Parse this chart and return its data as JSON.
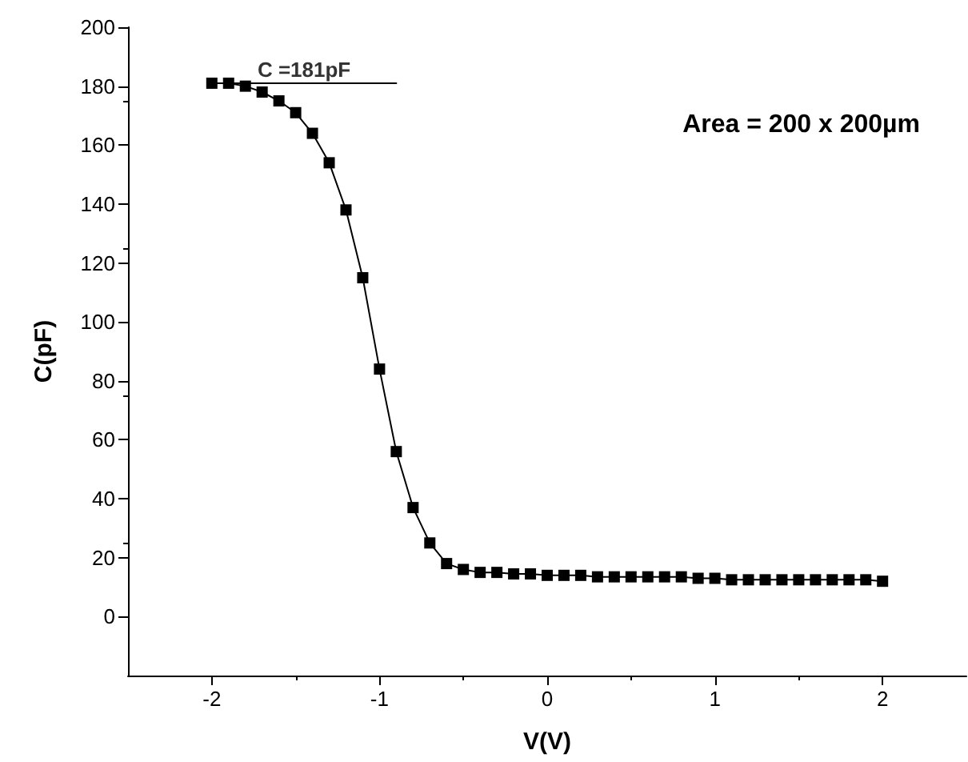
{
  "chart_data": {
    "type": "line",
    "xlabel": "V(V)",
    "ylabel": "C(pF)",
    "xlim": [
      -2.5,
      2.5
    ],
    "xticks": [
      -2,
      -1,
      0,
      1,
      2
    ],
    "ylim": [
      -20,
      200
    ],
    "yticks": [
      0,
      20,
      40,
      60,
      80,
      100,
      120,
      140,
      160,
      180,
      200
    ],
    "grid": false,
    "marker": "square",
    "line_style": "solid",
    "series": [
      {
        "color": "#000000",
        "x": [
          -2,
          -1.9,
          -1.8,
          -1.7,
          -1.6,
          -1.5,
          -1.4,
          -1.3,
          -1.2,
          -1.1,
          -1,
          -0.9,
          -0.8,
          -0.7,
          -0.6,
          -0.5,
          -0.4,
          -0.3,
          -0.2,
          -0.1,
          0,
          0.1,
          0.2,
          0.3,
          0.4,
          0.5,
          0.6,
          0.7,
          0.8,
          0.9,
          1,
          1.1,
          1.2,
          1.3,
          1.4,
          1.5,
          1.6,
          1.7,
          1.8,
          1.9,
          2
        ],
        "values": [
          181,
          181,
          180,
          178,
          175,
          171,
          164,
          154,
          138,
          115,
          84,
          56,
          37,
          25,
          18,
          16,
          15,
          15,
          14.5,
          14.5,
          14,
          14,
          14,
          13.5,
          13.5,
          13.5,
          13.5,
          13.5,
          13.5,
          13,
          13,
          12.5,
          12.5,
          12.5,
          12.5,
          12.5,
          12.5,
          12.5,
          12.5,
          12.5,
          12
        ]
      },
      {
        "type": "line",
        "marker": "none",
        "color": "#000000",
        "x": [
          -2,
          -0.9
        ],
        "values": [
          181,
          181
        ]
      }
    ],
    "annotations": [
      {
        "text": "C =181pF",
        "x": -1.45,
        "y": 181
      },
      "Area = 200 x 200µm"
    ]
  }
}
